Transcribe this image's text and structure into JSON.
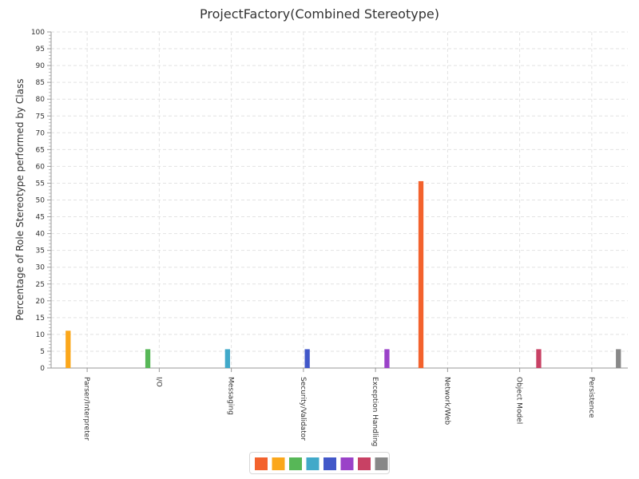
{
  "chart_data": {
    "type": "bar",
    "title": "ProjectFactory(Combined Stereotype)",
    "xlabel": "",
    "ylabel": "Percentage of Role Stereotype performed by Class",
    "ylim": [
      0,
      100
    ],
    "ytick_step": 5,
    "grid": true,
    "legend_placement": "bottom-center",
    "categories": [
      "Parser/Interpreter",
      "I/O",
      "Messaging",
      "Security/Validator",
      "Exception Handling",
      "Network/Web",
      "Object Model",
      "Persistence"
    ],
    "series": [
      {
        "color": "#f3622d",
        "values": [
          0,
          0,
          0,
          0,
          0,
          55.6,
          0,
          0
        ]
      },
      {
        "color": "#fba71b",
        "values": [
          11.1,
          0,
          0,
          0,
          0,
          0,
          0,
          0
        ]
      },
      {
        "color": "#57b757",
        "values": [
          0,
          5.6,
          0,
          0,
          0,
          0,
          0,
          0
        ]
      },
      {
        "color": "#41a9c9",
        "values": [
          0,
          0,
          5.6,
          0,
          0,
          0,
          0,
          0
        ]
      },
      {
        "color": "#4258c9",
        "values": [
          0,
          0,
          0,
          5.6,
          0,
          0,
          0,
          0
        ]
      },
      {
        "color": "#9a42c8",
        "values": [
          0,
          0,
          0,
          0,
          5.6,
          0,
          0,
          0
        ]
      },
      {
        "color": "#c84164",
        "values": [
          0,
          0,
          0,
          0,
          0,
          0,
          5.6,
          0
        ]
      },
      {
        "color": "#888888",
        "values": [
          0,
          0,
          0,
          0,
          0,
          0,
          0,
          5.6
        ]
      }
    ]
  }
}
